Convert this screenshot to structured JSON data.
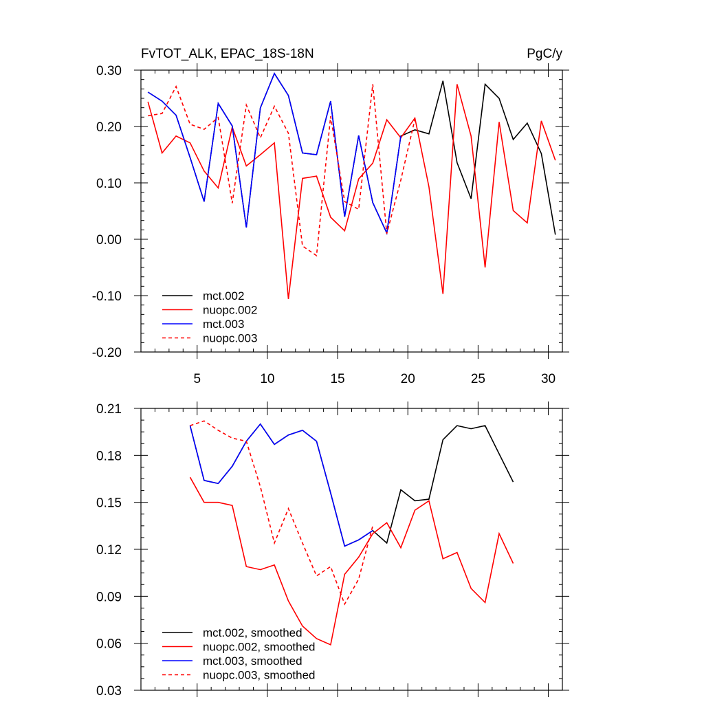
{
  "chart_data": [
    {
      "type": "line",
      "title": "FvTOT_ALK, EPAC_18S-18N",
      "units": "PgC/y",
      "xlim": [
        1,
        31
      ],
      "ylim": [
        -0.2,
        0.3
      ],
      "xticks": [
        5,
        10,
        15,
        20,
        25,
        30
      ],
      "xtick_labels": [
        "5",
        "10",
        "15",
        "20",
        "25",
        "30"
      ],
      "yticks": [
        -0.2,
        -0.1,
        0.0,
        0.1,
        0.2,
        0.3
      ],
      "ytick_labels": [
        "-0.20",
        "-0.10",
        "0.00",
        "0.10",
        "0.20",
        "0.30"
      ],
      "legend_position": "bottom-left",
      "series": [
        {
          "name": "mct.002",
          "color": "#000000",
          "dash": "solid",
          "x": [
            1.5,
            2.5,
            3.5,
            4.5,
            5.5,
            6.5,
            7.5,
            8.5,
            9.5,
            10.5,
            11.5,
            12.5,
            13.5,
            14.5,
            15.5,
            16.5,
            17.5,
            18.5,
            19.5,
            20.5,
            21.5,
            22.5,
            23.5,
            24.5,
            25.5,
            26.5,
            27.5,
            28.5,
            29.5,
            30.5
          ],
          "y": [
            0.261,
            0.245,
            0.22,
            0.145,
            0.067,
            0.241,
            0.201,
            0.021,
            0.233,
            0.294,
            0.255,
            0.153,
            0.15,
            0.245,
            0.04,
            0.184,
            0.065,
            0.011,
            0.183,
            0.194,
            0.187,
            0.281,
            0.136,
            0.072,
            0.275,
            0.25,
            0.177,
            0.206,
            0.152,
            0.008
          ]
        },
        {
          "name": "nuopc.002",
          "color": "#ff0000",
          "dash": "solid",
          "x": [
            1.5,
            2.5,
            3.5,
            4.5,
            5.5,
            6.5,
            7.5,
            8.5,
            9.5,
            10.5,
            11.5,
            12.5,
            13.5,
            14.5,
            15.5,
            16.5,
            17.5,
            18.5,
            19.5,
            20.5,
            21.5,
            22.5,
            23.5,
            24.5,
            25.5,
            26.5,
            27.5,
            28.5,
            29.5,
            30.5
          ],
          "y": [
            0.244,
            0.153,
            0.183,
            0.171,
            0.121,
            0.091,
            0.199,
            0.13,
            0.15,
            0.171,
            -0.106,
            0.108,
            0.112,
            0.039,
            0.015,
            0.107,
            0.135,
            0.212,
            0.18,
            0.215,
            0.093,
            -0.097,
            0.275,
            0.183,
            -0.05,
            0.208,
            0.051,
            0.029,
            0.21,
            0.14
          ]
        },
        {
          "name": "mct.003",
          "color": "#0000ff",
          "dash": "solid",
          "x": [
            1.5,
            2.5,
            3.5,
            4.5,
            5.5,
            6.5,
            7.5,
            8.5,
            9.5,
            10.5,
            11.5,
            12.5,
            13.5,
            14.5,
            15.5,
            16.5,
            17.5,
            18.5,
            19.5
          ],
          "y": [
            0.261,
            0.245,
            0.22,
            0.145,
            0.067,
            0.241,
            0.201,
            0.021,
            0.233,
            0.294,
            0.255,
            0.153,
            0.15,
            0.245,
            0.04,
            0.184,
            0.065,
            0.011,
            0.183
          ]
        },
        {
          "name": "nuopc.003",
          "color": "#ff0000",
          "dash": "dashed",
          "x": [
            1.5,
            2.5,
            3.5,
            4.5,
            5.5,
            6.5,
            7.5,
            8.5,
            9.5,
            10.5,
            11.5,
            12.5,
            13.5,
            14.5,
            15.5,
            16.5,
            17.5,
            18.5,
            19.5,
            20.5
          ],
          "y": [
            0.219,
            0.223,
            0.271,
            0.204,
            0.195,
            0.216,
            0.064,
            0.238,
            0.18,
            0.236,
            0.188,
            -0.012,
            -0.029,
            0.218,
            0.067,
            0.053,
            0.275,
            0.01,
            0.105,
            0.213
          ]
        }
      ]
    },
    {
      "type": "line",
      "title": "",
      "xlim": [
        1,
        31
      ],
      "ylim": [
        0.03,
        0.21
      ],
      "xticks": [
        5,
        10,
        15,
        20,
        25,
        30
      ],
      "yticks": [
        0.03,
        0.06,
        0.09,
        0.12,
        0.15,
        0.18,
        0.21
      ],
      "ytick_labels": [
        "0.03",
        "0.06",
        "0.09",
        "0.12",
        "0.15",
        "0.18",
        "0.21"
      ],
      "legend_position": "bottom-left",
      "series": [
        {
          "name": "mct.002, smoothed",
          "color": "#000000",
          "dash": "solid",
          "x": [
            4.5,
            5.5,
            6.5,
            7.5,
            8.5,
            9.5,
            10.5,
            11.5,
            12.5,
            13.5,
            14.5,
            15.5,
            16.5,
            17.5,
            18.5,
            19.5,
            20.5,
            21.5,
            22.5,
            23.5,
            24.5,
            25.5,
            26.5,
            27.5
          ],
          "y": [
            0.199,
            0.164,
            0.162,
            0.173,
            0.189,
            0.2,
            0.187,
            0.193,
            0.196,
            0.189,
            0.156,
            0.122,
            0.126,
            0.132,
            0.124,
            0.158,
            0.151,
            0.152,
            0.19,
            0.199,
            0.197,
            0.199,
            0.181,
            0.163
          ]
        },
        {
          "name": "nuopc.002, smoothed",
          "color": "#ff0000",
          "dash": "solid",
          "x": [
            4.5,
            5.5,
            6.5,
            7.5,
            8.5,
            9.5,
            10.5,
            11.5,
            12.5,
            13.5,
            14.5,
            15.5,
            16.5,
            17.5,
            18.5,
            19.5,
            20.5,
            21.5,
            22.5,
            23.5,
            24.5,
            25.5,
            26.5,
            27.5
          ],
          "y": [
            0.166,
            0.15,
            0.15,
            0.148,
            0.109,
            0.107,
            0.11,
            0.087,
            0.071,
            0.063,
            0.059,
            0.104,
            0.115,
            0.13,
            0.137,
            0.121,
            0.145,
            0.151,
            0.114,
            0.118,
            0.095,
            0.086,
            0.13,
            0.111
          ]
        },
        {
          "name": "mct.003, smoothed",
          "color": "#0000ff",
          "dash": "solid",
          "x": [
            4.5,
            5.5,
            6.5,
            7.5,
            8.5,
            9.5,
            10.5,
            11.5,
            12.5,
            13.5,
            14.5,
            15.5,
            16.5,
            17.5
          ],
          "y": [
            0.199,
            0.164,
            0.162,
            0.173,
            0.189,
            0.2,
            0.187,
            0.193,
            0.196,
            0.189,
            0.156,
            0.122,
            0.126,
            0.132
          ]
        },
        {
          "name": "nuopc.003, smoothed",
          "color": "#ff0000",
          "dash": "dashed",
          "x": [
            4.5,
            5.5,
            6.5,
            7.5,
            8.5,
            9.5,
            10.5,
            11.5,
            12.5,
            13.5,
            14.5,
            15.5,
            16.5,
            17.5
          ],
          "y": [
            0.199,
            0.202,
            0.196,
            0.191,
            0.189,
            0.16,
            0.124,
            0.146,
            0.124,
            0.103,
            0.109,
            0.085,
            0.101,
            0.135
          ]
        }
      ]
    }
  ]
}
